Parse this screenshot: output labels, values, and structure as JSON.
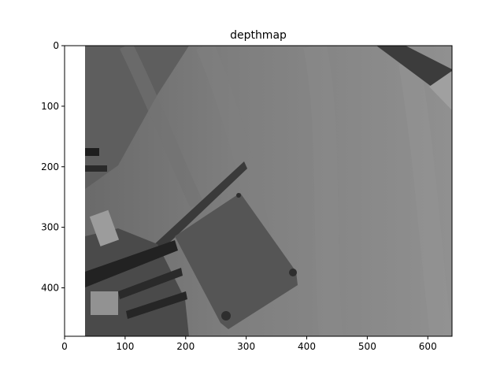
{
  "chart_data": {
    "type": "heatmap",
    "title": "depthmap",
    "colormap": "gray",
    "xlim": [
      0,
      640
    ],
    "ylim": [
      480,
      0
    ],
    "xticks": [
      0,
      100,
      200,
      300,
      400,
      500,
      600
    ],
    "yticks": [
      0,
      100,
      200,
      300,
      400
    ],
    "image_extent": {
      "x": [
        34,
        640
      ],
      "y": [
        0,
        480
      ]
    },
    "grid": false,
    "xlabel": "",
    "ylabel": ""
  }
}
